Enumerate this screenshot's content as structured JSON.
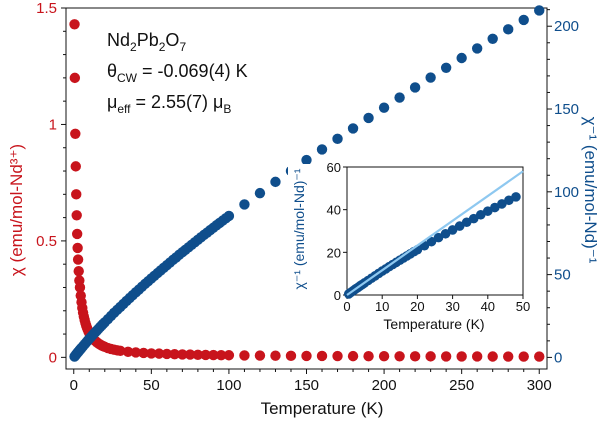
{
  "chart_data": [
    {
      "type": "scatter",
      "title": "",
      "xlabel": "Temperature (K)",
      "ylabel_left": "χ (emu/mol-Nd³⁺)",
      "ylabel_right": "χ⁻¹ (emu/mol-Nd)⁻¹",
      "xlim": [
        -5,
        305
      ],
      "ylim_left": [
        -0.05,
        1.5
      ],
      "ylim_right": [
        -7,
        211
      ],
      "xticks": [
        0,
        50,
        100,
        150,
        200,
        250,
        300
      ],
      "yticks_left": [
        0,
        0.5,
        1,
        1.5
      ],
      "yticks_right": [
        0,
        50,
        100,
        150,
        200
      ],
      "grid": false,
      "annotations": {
        "compound": [
          "Nd",
          "2",
          "Pb",
          "2",
          "O",
          "7"
        ],
        "theta_cw": [
          "θ",
          "CW",
          " = -0.069(4) K"
        ],
        "mu_eff": [
          "μ",
          "eff",
          " = 2.55(7) μ",
          "B"
        ]
      },
      "series": [
        {
          "axis": "left",
          "color": "#c8141c",
          "x": [
            0.5,
            0.7,
            1.0,
            1.3,
            1.6,
            1.9,
            2.2,
            2.5,
            2.8,
            3.2,
            3.6,
            4.0,
            4.5,
            5.0,
            5.5,
            6.0,
            6.5,
            7.0,
            7.5,
            8.0,
            8.5,
            9.0,
            9.5,
            10,
            11,
            12,
            13,
            14,
            15,
            16,
            17,
            18,
            19,
            20,
            22,
            24,
            26,
            28,
            30,
            35,
            40,
            45,
            50,
            55,
            60,
            65,
            70,
            75,
            80,
            85,
            90,
            95,
            100,
            110,
            120,
            130,
            140,
            150,
            160,
            170,
            180,
            190,
            200,
            210,
            220,
            230,
            240,
            250,
            260,
            270,
            280,
            290,
            300
          ],
          "values": [
            1.43,
            1.2,
            0.96,
            0.82,
            0.7,
            0.61,
            0.53,
            0.47,
            0.42,
            0.37,
            0.33,
            0.3,
            0.265,
            0.237,
            0.212,
            0.192,
            0.175,
            0.161,
            0.148,
            0.137,
            0.127,
            0.119,
            0.111,
            0.104,
            0.093,
            0.084,
            0.076,
            0.07,
            0.064,
            0.059,
            0.055,
            0.051,
            0.048,
            0.045,
            0.04,
            0.036,
            0.033,
            0.03,
            0.028,
            0.024,
            0.021,
            0.019,
            0.017,
            0.016,
            0.0145,
            0.0135,
            0.0126,
            0.0118,
            0.0111,
            0.0105,
            0.01,
            0.0095,
            0.009,
            0.0082,
            0.0076,
            0.0071,
            0.0066,
            0.0062,
            0.0059,
            0.0056,
            0.0053,
            0.005,
            0.0048,
            0.0046,
            0.0044,
            0.0042,
            0.0041,
            0.0039,
            0.0038,
            0.0037,
            0.0035,
            0.0034,
            0.0033
          ]
        },
        {
          "axis": "right",
          "color": "#0f4e8c",
          "x": [
            0.5,
            1.0,
            1.5,
            2.0,
            2.5,
            3.0,
            3.5,
            4.0,
            4.5,
            5.0,
            6,
            7,
            8,
            9,
            10,
            11,
            12,
            13,
            14,
            15,
            16,
            17,
            18,
            19,
            20,
            22,
            24,
            26,
            28,
            30,
            32,
            34,
            36,
            38,
            40,
            42,
            44,
            46,
            48,
            50,
            52,
            54,
            56,
            58,
            60,
            62,
            64,
            66,
            68,
            70,
            72,
            74,
            76,
            78,
            80,
            82,
            84,
            86,
            88,
            90,
            92,
            94,
            96,
            98,
            100,
            110,
            120,
            130,
            140,
            150,
            160,
            170,
            180,
            190,
            200,
            210,
            220,
            230,
            240,
            250,
            260,
            270,
            280,
            290,
            300
          ],
          "values": [
            0.5,
            1.1,
            1.7,
            2.3,
            2.9,
            3.4,
            4.0,
            4.6,
            5.1,
            5.7,
            6.8,
            7.9,
            9.0,
            10.1,
            11.2,
            12.2,
            13.3,
            14.3,
            15.3,
            16.3,
            17.3,
            18.3,
            19.3,
            20.3,
            21.2,
            23.1,
            25.0,
            26.9,
            28.7,
            30.5,
            32.3,
            34.1,
            35.8,
            37.6,
            39.3,
            41.0,
            42.7,
            44.4,
            46.0,
            47.7,
            49.3,
            50.9,
            52.5,
            54.1,
            55.7,
            57.3,
            58.9,
            60.4,
            62.0,
            63.5,
            65.0,
            66.5,
            68.0,
            69.5,
            71.0,
            72.5,
            74.0,
            75.4,
            76.9,
            78.3,
            79.8,
            81.2,
            82.6,
            84.0,
            85.4,
            92.4,
            99.2,
            106.0,
            112.6,
            119.2,
            125.6,
            132.0,
            138.3,
            144.6,
            150.8,
            156.9,
            163.0,
            169.0,
            174.9,
            180.8,
            186.6,
            192.4,
            198.1,
            203.8,
            209.5
          ]
        }
      ]
    },
    {
      "type": "scatter",
      "title": "",
      "xlabel": "Temperature (K)",
      "ylabel": "χ⁻¹ (emu/mol-Nd)⁻¹",
      "xlim": [
        0,
        50
      ],
      "ylim": [
        0,
        60
      ],
      "xticks": [
        0,
        10,
        20,
        30,
        40,
        50
      ],
      "yticks": [
        0,
        20,
        40,
        60
      ],
      "grid": false,
      "series": [
        {
          "color": "#0f4e8c",
          "x": [
            0.5,
            1.0,
            1.5,
            2.0,
            2.5,
            3.0,
            3.5,
            4.0,
            4.5,
            5.0,
            6,
            7,
            8,
            9,
            10,
            11,
            12,
            13,
            14,
            15,
            16,
            17,
            18,
            19,
            20,
            22,
            24,
            26,
            28,
            30,
            32,
            34,
            36,
            38,
            40,
            42,
            44,
            46,
            48
          ],
          "values": [
            0.5,
            1.1,
            1.7,
            2.3,
            2.9,
            3.4,
            4.0,
            4.6,
            5.1,
            5.7,
            6.8,
            7.9,
            9.0,
            10.1,
            11.2,
            12.2,
            13.3,
            14.3,
            15.3,
            16.3,
            17.3,
            18.3,
            19.3,
            20.3,
            21.2,
            23.1,
            25.0,
            26.9,
            28.7,
            30.5,
            32.3,
            34.1,
            35.8,
            37.6,
            39.3,
            41.0,
            42.7,
            44.4,
            46.0
          ]
        },
        {
          "type": "line",
          "color": "#8ec8f0",
          "x": [
            0,
            50
          ],
          "values": [
            0,
            58
          ]
        }
      ]
    }
  ],
  "colors": {
    "left_axis": "#c8141c",
    "right_axis": "#0f4e8c",
    "fit_line": "#8ec8f0"
  }
}
